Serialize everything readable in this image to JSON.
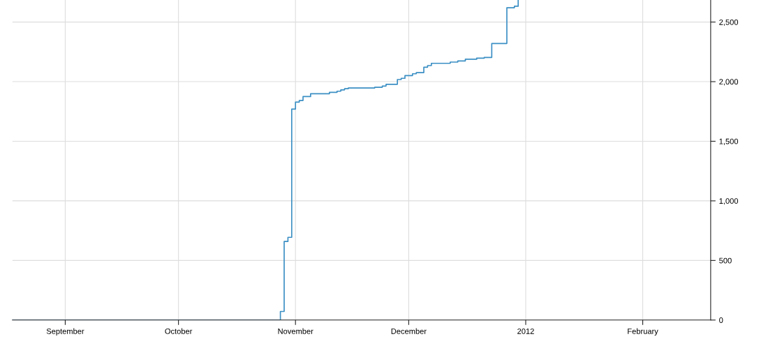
{
  "chart_data": {
    "type": "step",
    "x": [
      "2011-08-18",
      "2011-10-28",
      "2011-10-29",
      "2011-10-30",
      "2011-10-31",
      "2011-11-01",
      "2011-11-02",
      "2011-11-03",
      "2011-11-05",
      "2011-11-10",
      "2011-11-12",
      "2011-11-13",
      "2011-11-14",
      "2011-11-15",
      "2011-11-22",
      "2011-11-24",
      "2011-11-25",
      "2011-11-28",
      "2011-11-29",
      "2011-11-30",
      "2011-12-02",
      "2011-12-03",
      "2011-12-05",
      "2011-12-06",
      "2011-12-07",
      "2011-12-12",
      "2011-12-14",
      "2011-12-16",
      "2011-12-19",
      "2011-12-21",
      "2011-12-23",
      "2011-12-27",
      "2011-12-29",
      "2011-12-30"
    ],
    "series": [
      {
        "color": "#3b8fc4",
        "values": [
          0,
          72,
          659,
          694,
          1770,
          1828,
          1842,
          1875,
          1899,
          1910,
          1920,
          1931,
          1941,
          1947,
          1953,
          1963,
          1978,
          2018,
          2028,
          2051,
          2066,
          2076,
          2121,
          2135,
          2154,
          2164,
          2174,
          2188,
          2197,
          2203,
          2320,
          2620,
          2633,
          2680
        ]
      }
    ],
    "xlim": [
      "2011-08-18",
      "2012-02-19"
    ],
    "xticks": [
      {
        "value": "2011-09-01",
        "label": "September"
      },
      {
        "value": "2011-10-01",
        "label": "October"
      },
      {
        "value": "2011-11-01",
        "label": "November"
      },
      {
        "value": "2011-12-01",
        "label": "December"
      },
      {
        "value": "2012-01-01",
        "label": "2012"
      },
      {
        "value": "2012-02-01",
        "label": "February"
      }
    ],
    "ylim": [
      0,
      2685
    ],
    "yticks": [
      0,
      500,
      {
        "value": 1000,
        "label": "1,000"
      },
      {
        "value": 1500,
        "label": "1,500"
      },
      {
        "value": 2000,
        "label": "2,000"
      },
      {
        "value": 2500,
        "label": "2,500"
      }
    ],
    "grid": true,
    "legend": false
  }
}
